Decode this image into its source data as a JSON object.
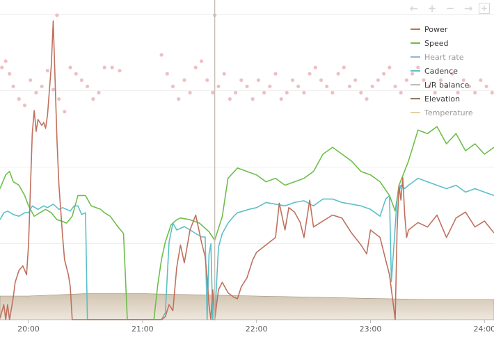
{
  "toolbar": {
    "pan_left_icon": "arrow-left-icon",
    "zoom_in_icon": "plus-icon",
    "zoom_out_icon": "minus-icon",
    "pan_right_icon": "arrow-right-icon",
    "reset_zoom_icon": "reset-zoom-icon",
    "glyph_left": "←",
    "glyph_plus": "+",
    "glyph_minus": "−",
    "glyph_right": "→",
    "glyph_box": "+"
  },
  "chart_data": {
    "type": "line",
    "x_tick_labels": [
      "20:00",
      "21:00",
      "22:00",
      "23:00",
      "24:00"
    ],
    "xlim": [
      "19:45",
      "24:05"
    ],
    "grid": "horizontal",
    "legend": "top-right",
    "cursor_time": "21:38",
    "colors": {
      "Power": "#c0705d",
      "Speed": "#6cbf4a",
      "Heart rate": "#9ab3d6",
      "Cadence": "#5bbfc8",
      "L/R balance": "#bdbdbd",
      "Elevation": "#8b7a62",
      "Temperature": "#e8cfa3",
      "dots": "#e8a9ae"
    },
    "series": [
      {
        "name": "Power",
        "x": [
          "19:45",
          "19:47",
          "19:48",
          "19:49",
          "19:50",
          "19:52",
          "19:53",
          "19:55",
          "19:57",
          "19:59",
          "20:00",
          "20:02",
          "20:03",
          "20:04",
          "20:05",
          "20:07",
          "20:08",
          "20:09",
          "20:10",
          "20:12",
          "20:13",
          "20:14",
          "20:15",
          "20:16",
          "20:18",
          "20:19",
          "20:21",
          "20:22",
          "20:23",
          "20:25",
          "20:26",
          "20:27",
          "20:29",
          "20:30",
          "20:33",
          "20:40",
          "20:50",
          "21:00",
          "21:05",
          "21:10",
          "21:12",
          "21:14",
          "21:16",
          "21:18",
          "21:20",
          "21:22",
          "21:25",
          "21:28",
          "21:31",
          "21:33",
          "21:34",
          "21:35",
          "21:36",
          "21:37",
          "21:38",
          "21:40",
          "21:42",
          "21:45",
          "21:48",
          "21:50",
          "21:52",
          "21:55",
          "21:58",
          "22:00",
          "22:05",
          "22:10",
          "22:12",
          "22:15",
          "22:17",
          "22:20",
          "22:23",
          "22:25",
          "22:28",
          "22:30",
          "22:35",
          "22:40",
          "22:45",
          "22:50",
          "22:55",
          "22:58",
          "23:00",
          "23:05",
          "23:08",
          "23:10",
          "23:12",
          "23:13",
          "23:14",
          "23:15",
          "23:16",
          "23:17",
          "23:18",
          "23:19",
          "23:20",
          "23:25",
          "23:30",
          "23:35",
          "23:40",
          "23:45",
          "23:50",
          "23:55",
          "24:00",
          "24:05"
        ],
        "values": [
          1,
          10,
          0,
          10,
          0,
          15,
          25,
          33,
          36,
          30,
          50,
          125,
          140,
          126,
          134,
          130,
          132,
          128,
          137,
          170,
          200,
          160,
          120,
          90,
          55,
          40,
          30,
          22,
          0,
          0,
          0,
          0,
          0,
          0,
          0,
          0,
          0,
          0,
          0,
          0,
          2,
          10,
          6,
          35,
          50,
          38,
          60,
          70,
          52,
          42,
          28,
          10,
          0,
          20,
          0,
          20,
          25,
          18,
          15,
          14,
          22,
          28,
          40,
          45,
          50,
          55,
          78,
          60,
          75,
          72,
          65,
          55,
          80,
          62,
          66,
          70,
          68,
          58,
          50,
          44,
          60,
          55,
          40,
          30,
          10,
          0,
          60,
          90,
          80,
          95,
          70,
          55,
          60,
          65,
          62,
          70,
          55,
          68,
          72,
          62,
          66,
          58
        ]
      },
      {
        "name": "Speed",
        "x": [
          "19:45",
          "19:48",
          "19:50",
          "19:52",
          "19:55",
          "19:58",
          "20:00",
          "20:03",
          "20:06",
          "20:09",
          "20:12",
          "20:15",
          "20:18",
          "20:20",
          "20:23",
          "20:26",
          "20:30",
          "20:33",
          "20:38",
          "20:40",
          "20:43",
          "20:47",
          "20:50",
          "20:52",
          "21:00",
          "21:06",
          "21:08",
          "21:10",
          "21:12",
          "21:15",
          "21:18",
          "21:20",
          "21:25",
          "21:30",
          "21:35",
          "21:38",
          "21:42",
          "21:45",
          "21:50",
          "21:55",
          "22:00",
          "22:05",
          "22:10",
          "22:15",
          "22:20",
          "22:25",
          "22:30",
          "22:35",
          "22:40",
          "22:45",
          "22:50",
          "22:55",
          "23:00",
          "23:05",
          "23:10",
          "23:13",
          "23:15",
          "23:20",
          "23:25",
          "23:30",
          "23:35",
          "23:40",
          "23:45",
          "23:50",
          "23:55",
          "24:00",
          "24:05"
        ],
        "values": [
          76,
          84,
          86,
          80,
          78,
          72,
          66,
          60,
          62,
          64,
          62,
          58,
          57,
          56,
          60,
          72,
          72,
          66,
          64,
          62,
          60,
          54,
          50,
          0,
          0,
          0,
          20,
          35,
          45,
          55,
          58,
          59,
          58,
          56,
          51,
          46,
          60,
          82,
          88,
          86,
          84,
          80,
          82,
          78,
          80,
          82,
          86,
          96,
          100,
          96,
          92,
          86,
          84,
          80,
          72,
          63,
          78,
          92,
          110,
          108,
          112,
          102,
          108,
          98,
          102,
          96,
          100
        ]
      },
      {
        "name": "Cadence",
        "x": [
          "19:45",
          "19:47",
          "19:49",
          "19:52",
          "19:55",
          "19:58",
          "20:00",
          "20:02",
          "20:05",
          "20:08",
          "20:10",
          "20:13",
          "20:16",
          "20:18",
          "20:20",
          "20:22",
          "20:24",
          "20:26",
          "20:28",
          "20:30",
          "20:31",
          "21:10",
          "21:12",
          "21:14",
          "21:16",
          "21:18",
          "21:20",
          "21:22",
          "21:25",
          "21:28",
          "21:31",
          "21:33",
          "21:34",
          "21:35",
          "21:36",
          "21:37",
          "21:38",
          "21:40",
          "21:42",
          "21:45",
          "21:48",
          "21:50",
          "21:53",
          "21:56",
          "22:00",
          "22:05",
          "22:10",
          "22:15",
          "22:20",
          "22:25",
          "22:30",
          "22:35",
          "22:40",
          "22:45",
          "22:50",
          "22:55",
          "23:00",
          "23:05",
          "23:08",
          "23:10",
          "23:11",
          "23:12",
          "23:14",
          "23:16",
          "23:18",
          "23:20",
          "23:25",
          "23:30",
          "23:35",
          "23:40",
          "23:45",
          "23:50",
          "23:55",
          "24:00",
          "24:05"
        ],
        "values": [
          58,
          62,
          63,
          61,
          60,
          62,
          62,
          66,
          64,
          66,
          65,
          67,
          64,
          65,
          64,
          63,
          66,
          66,
          61,
          62,
          0,
          0,
          4,
          45,
          56,
          52,
          53,
          54,
          52,
          50,
          48,
          48,
          0,
          38,
          44,
          0,
          0,
          42,
          50,
          56,
          60,
          62,
          63,
          64,
          65,
          68,
          67,
          66,
          68,
          69,
          66,
          70,
          70,
          68,
          67,
          66,
          64,
          60,
          70,
          72,
          22,
          38,
          70,
          78,
          76,
          78,
          82,
          80,
          78,
          76,
          78,
          74,
          76,
          74,
          72
        ]
      },
      {
        "name": "Elevation",
        "x": [
          "19:45",
          "20:00",
          "20:30",
          "21:00",
          "21:30",
          "22:00",
          "22:30",
          "23:00",
          "23:30",
          "24:00",
          "24:05"
        ],
        "values": [
          10,
          10,
          11,
          11,
          10.5,
          10,
          9.5,
          9,
          8.5,
          8.5,
          8.5
        ]
      }
    ],
    "dots": {
      "series": "Heart rate (pink markers)",
      "x": [
        "19:46",
        "19:48",
        "19:50",
        "19:52",
        "19:55",
        "19:58",
        "20:01",
        "20:04",
        "20:07",
        "20:10",
        "20:13",
        "20:16",
        "20:19",
        "20:22",
        "20:25",
        "20:28",
        "20:31",
        "20:34",
        "20:37",
        "20:40",
        "20:44",
        "20:48",
        "21:10",
        "21:13",
        "21:16",
        "21:19",
        "21:22",
        "21:25",
        "21:28",
        "21:31",
        "21:34",
        "21:37",
        "21:40",
        "21:43",
        "21:46",
        "21:49",
        "21:52",
        "21:55",
        "21:58",
        "22:01",
        "22:04",
        "22:07",
        "22:10",
        "22:13",
        "22:16",
        "22:19",
        "22:22",
        "22:25",
        "22:28",
        "22:31",
        "22:34",
        "22:37",
        "22:40",
        "22:43",
        "22:46",
        "22:49",
        "22:52",
        "22:55",
        "22:58",
        "23:01",
        "23:04",
        "23:07",
        "23:10",
        "23:13",
        "23:16",
        "23:19",
        "23:22",
        "23:25",
        "23:28",
        "23:31",
        "23:34",
        "23:37",
        "23:40",
        "23:43",
        "23:46",
        "23:49",
        "23:52",
        "23:55",
        "23:58",
        "24:01",
        "24:04",
        "20:15",
        "21:38"
      ],
      "values": [
        80,
        82,
        78,
        74,
        70,
        68,
        76,
        72,
        74,
        79,
        73,
        70,
        66,
        80,
        78,
        76,
        74,
        70,
        72,
        80,
        80,
        79,
        84,
        78,
        74,
        70,
        76,
        72,
        80,
        82,
        76,
        72,
        74,
        78,
        70,
        72,
        76,
        74,
        70,
        76,
        72,
        74,
        78,
        70,
        72,
        76,
        74,
        72,
        78,
        80,
        76,
        74,
        72,
        78,
        80,
        74,
        76,
        72,
        70,
        74,
        76,
        78,
        80,
        74,
        72,
        76,
        78,
        80,
        76,
        74,
        72,
        76,
        74,
        78,
        72,
        76,
        74,
        72,
        76,
        74,
        72,
        200,
        200
      ]
    }
  },
  "legend": {
    "items": [
      {
        "label": "Power",
        "color": "#c0705d",
        "muted": false
      },
      {
        "label": "Speed",
        "color": "#6cbf4a",
        "muted": false
      },
      {
        "label": "Heart rate",
        "color": "#9ab3d6",
        "muted": true
      },
      {
        "label": "Cadence",
        "color": "#5bbfc8",
        "muted": false
      },
      {
        "label": "L/R balance",
        "color": "#bdbdbd",
        "muted": false
      },
      {
        "label": "Elevation",
        "color": "#8b7a62",
        "muted": false
      },
      {
        "label": "Temperature",
        "color": "#e8cfa3",
        "muted": true
      }
    ]
  }
}
